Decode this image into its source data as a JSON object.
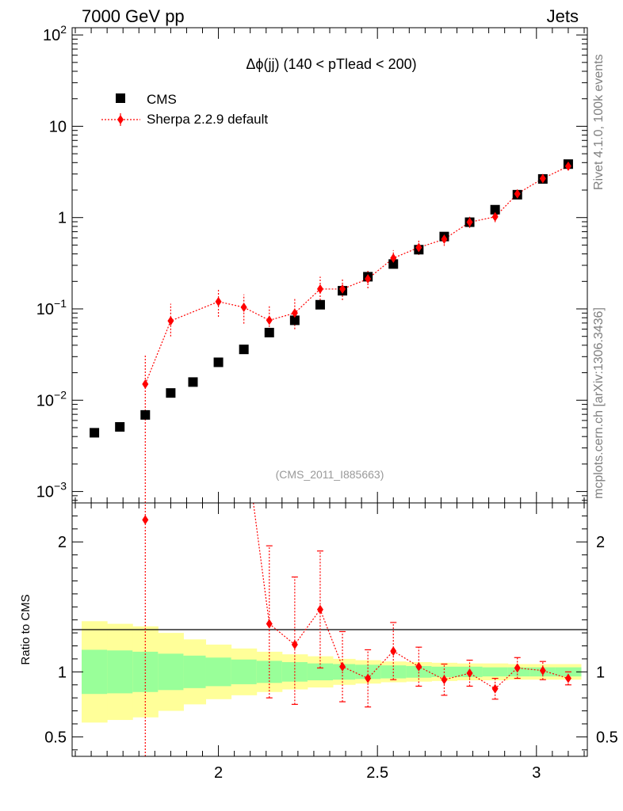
{
  "header": {
    "left": "7000 GeV pp",
    "right": "Jets"
  },
  "side_labels": {
    "rivet": "Rivet 4.1.0,  100k events",
    "mcplots": "mcplots.cern.ch [arXiv:1306.3436]"
  },
  "colors": {
    "mc": "#ff0000",
    "data": "#000000",
    "band_inner": "#99ff99",
    "band_outer": "#ffff99"
  },
  "chart_data": [
    {
      "type": "scatter",
      "panel": "main",
      "title": "Δϕ(jj) (140 < pTlead <  200)",
      "watermark": "(CMS_2011_I885663)",
      "yscale": "log",
      "xlim": [
        1.54,
        3.16
      ],
      "ylim": [
        0.00075,
        120
      ],
      "y_ticks": [
        {
          "value": 0.001,
          "base": "10",
          "exp": "−3"
        },
        {
          "value": 0.01,
          "base": "10",
          "exp": "−2"
        },
        {
          "value": 0.1,
          "base": "10",
          "exp": "−1"
        },
        {
          "value": 1,
          "base": "1",
          "exp": ""
        },
        {
          "value": 10,
          "base": "10",
          "exp": ""
        },
        {
          "value": 100,
          "base": "10",
          "exp": "2"
        }
      ],
      "legend": {
        "position": "top-left",
        "entries": [
          {
            "key": "cms",
            "label": "CMS"
          },
          {
            "key": "sherpa",
            "label": "Sherpa 2.2.9 default"
          }
        ]
      },
      "series": [
        {
          "name": "CMS",
          "x": [
            1.61,
            1.69,
            1.77,
            1.85,
            1.92,
            2.0,
            2.08,
            2.16,
            2.24,
            2.32,
            2.39,
            2.47,
            2.55,
            2.63,
            2.71,
            2.79,
            2.87,
            2.94,
            3.02,
            3.1
          ],
          "values": [
            0.0044,
            0.0051,
            0.0069,
            0.012,
            0.0158,
            0.026,
            0.036,
            0.055,
            0.075,
            0.111,
            0.158,
            0.225,
            0.31,
            0.445,
            0.62,
            0.89,
            1.22,
            1.78,
            2.65,
            3.85
          ]
        },
        {
          "name": "Sherpa 2.2.9 default",
          "x": [
            1.77,
            1.85,
            2.0,
            2.08,
            2.16,
            2.24,
            2.32,
            2.39,
            2.47,
            2.55,
            2.63,
            2.71,
            2.79,
            2.87,
            2.94,
            3.02,
            3.1
          ],
          "values": [
            0.015,
            0.074,
            0.12,
            0.104,
            0.075,
            0.09,
            0.165,
            0.165,
            0.213,
            0.36,
            0.47,
            0.58,
            0.89,
            1.02,
            1.82,
            2.68,
            3.65
          ],
          "err_lo": [
            0.0149,
            0.024,
            0.038,
            0.035,
            0.025,
            0.03,
            0.05,
            0.04,
            0.045,
            0.07,
            0.08,
            0.09,
            0.12,
            0.13,
            0.2,
            0.25,
            0.3
          ],
          "err_hi": [
            0.016,
            0.04,
            0.045,
            0.04,
            0.035,
            0.04,
            0.06,
            0.045,
            0.05,
            0.08,
            0.09,
            0.1,
            0.13,
            0.14,
            0.2,
            0.25,
            0.3
          ]
        }
      ]
    },
    {
      "type": "scatter",
      "panel": "ratio",
      "ylabel": "Ratio to CMS",
      "xlim": [
        1.54,
        3.16
      ],
      "ylim": [
        0.35,
        2.3
      ],
      "y_ticks": [
        {
          "value": 0.5,
          "label": "0.5"
        },
        {
          "value": 1,
          "label": "1"
        },
        {
          "value": 2,
          "label": "2"
        }
      ],
      "x_ticks": [
        {
          "value": 2,
          "label": "2"
        },
        {
          "value": 2.5,
          "label": "2.5"
        },
        {
          "value": 3,
          "label": "3"
        }
      ],
      "band": {
        "edges": [
          1.57,
          1.65,
          1.73,
          1.81,
          1.89,
          1.96,
          2.04,
          2.12,
          2.2,
          2.28,
          2.36,
          2.43,
          2.51,
          2.59,
          2.67,
          2.75,
          2.83,
          2.91,
          2.98,
          3.06,
          3.14
        ],
        "inner": [
          0.17,
          0.165,
          0.155,
          0.14,
          0.125,
          0.11,
          0.095,
          0.085,
          0.075,
          0.065,
          0.06,
          0.055,
          0.05,
          0.045,
          0.04,
          0.04,
          0.035,
          0.035,
          0.035,
          0.035
        ],
        "outer": [
          0.39,
          0.37,
          0.35,
          0.3,
          0.25,
          0.21,
          0.18,
          0.155,
          0.135,
          0.12,
          0.1,
          0.09,
          0.08,
          0.075,
          0.07,
          0.065,
          0.065,
          0.06,
          0.06,
          0.06
        ]
      },
      "series": [
        {
          "name": "Sherpa 2.2.9 default",
          "x": [
            1.77,
            2.16,
            2.24,
            2.32,
            2.39,
            2.47,
            2.55,
            2.63,
            2.71,
            2.79,
            2.87,
            2.94,
            3.02,
            3.1
          ],
          "values": [
            2.17,
            1.37,
            1.21,
            1.48,
            1.04,
            0.95,
            1.16,
            1.04,
            0.94,
            0.99,
            0.87,
            1.03,
            1.01,
            0.95
          ],
          "err_lo": [
            1.9,
            0.57,
            0.46,
            0.45,
            0.27,
            0.22,
            0.22,
            0.15,
            0.12,
            0.1,
            0.08,
            0.08,
            0.07,
            0.05
          ],
          "err_hi": [
            0.5,
            0.6,
            0.52,
            0.45,
            0.27,
            0.22,
            0.22,
            0.15,
            0.12,
            0.1,
            0.08,
            0.08,
            0.07,
            0.05
          ]
        }
      ],
      "offscale_connector": {
        "from_x": 2.08,
        "to_x": 2.16
      }
    }
  ]
}
